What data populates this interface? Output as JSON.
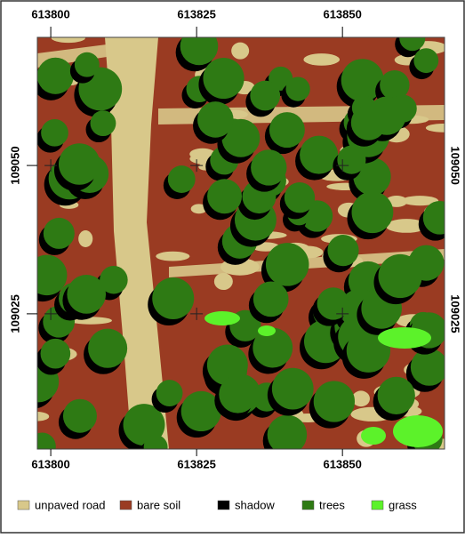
{
  "map": {
    "xticks": [
      613800,
      613825,
      613850
    ],
    "yticks": [
      109050,
      109025
    ],
    "xlim": [
      613797.7,
      613867.5
    ],
    "ylim": [
      109002.2,
      109071.6
    ],
    "legend": [
      {
        "name": "unpaved road",
        "color": "#d8c88a"
      },
      {
        "name": "bare soil",
        "color": "#9a3b22"
      },
      {
        "name": "shadow",
        "color": "#000000"
      },
      {
        "name": "trees",
        "color": "#2e7a14"
      },
      {
        "name": "grass",
        "color": "#5cf22a"
      }
    ]
  }
}
